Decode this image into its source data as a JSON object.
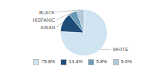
{
  "chart_data": {
    "type": "pie",
    "categories": [
      "WHITE",
      "ASIAN",
      "HISPANIC",
      "BLACK"
    ],
    "values": [
      75.8,
      13.4,
      5.8,
      5.0
    ],
    "value_labels": [
      "75.8%",
      "13.4%",
      "5.8%",
      "5.0%"
    ],
    "colors": [
      "#d0e3f0",
      "#1e4d78",
      "#6a9ab8",
      "#b0c8d8"
    ],
    "legend": "bottom"
  }
}
